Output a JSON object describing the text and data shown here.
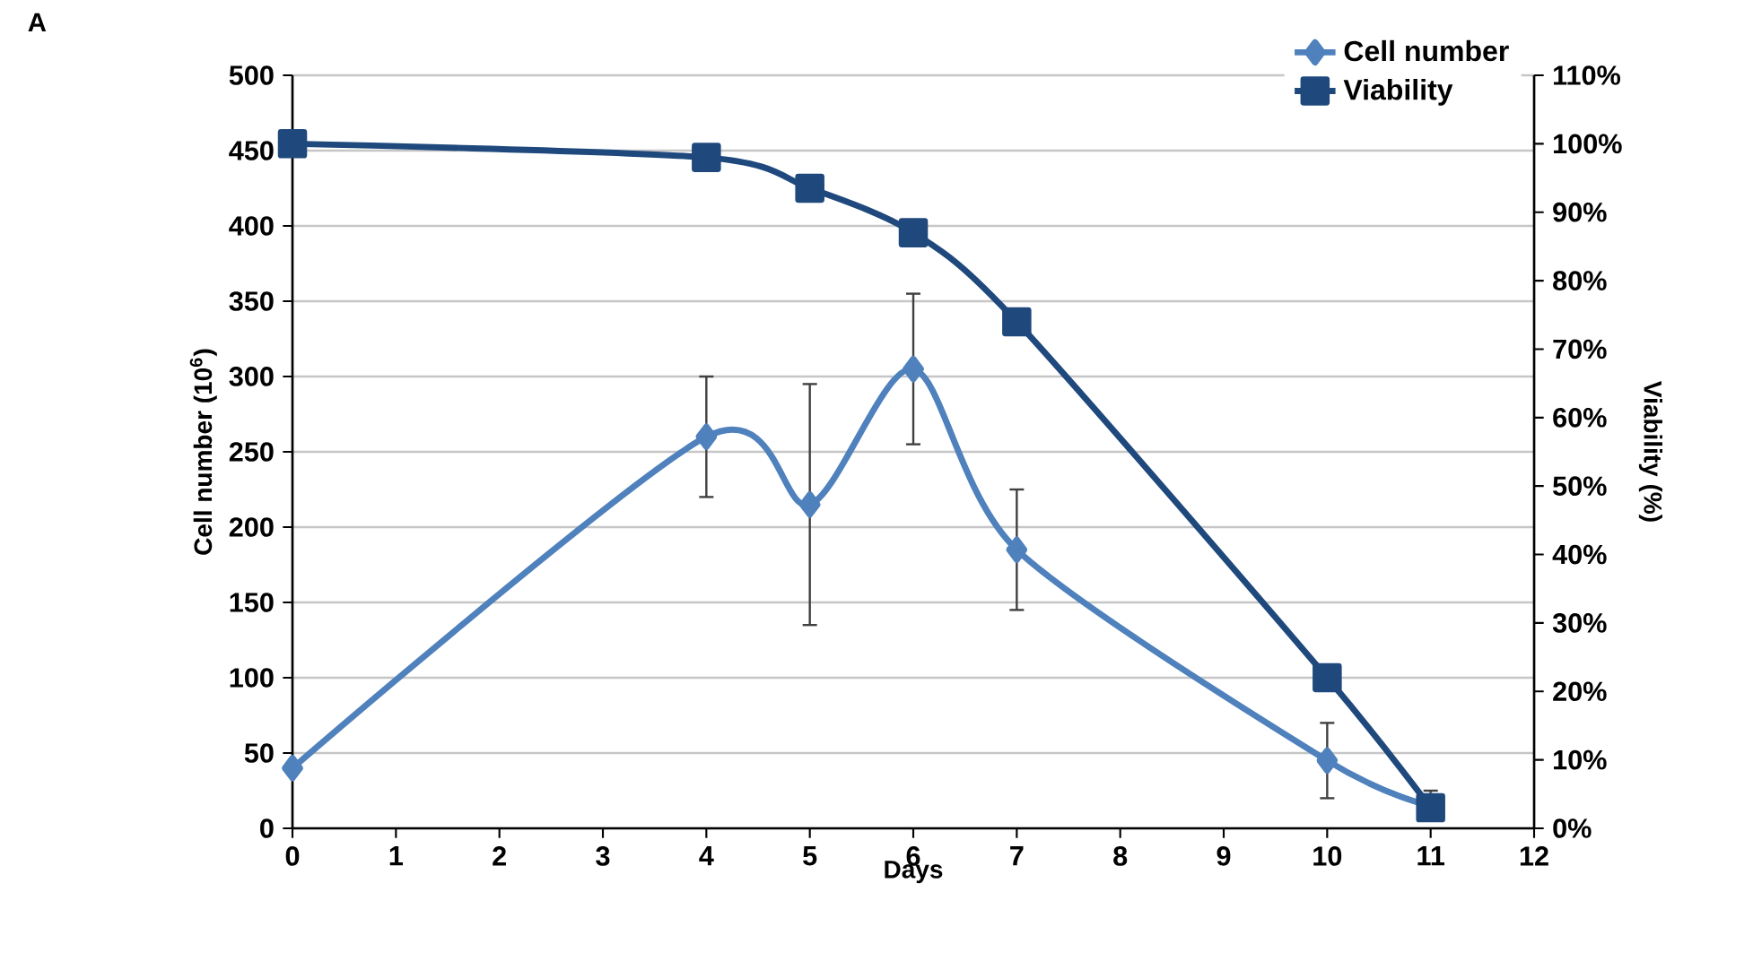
{
  "chart_data": {
    "type": "line",
    "annotations": [
      "A"
    ],
    "xlabel": "Days",
    "ylabel": "Cell number (10$^{6}$)",
    "y2label": "Viability (%)",
    "x": [
      0,
      4,
      5,
      6,
      7,
      10,
      11
    ],
    "series": [
      {
        "name": "Cell number",
        "color": "#4f81bd",
        "marker": "diamond",
        "values": [
          40,
          260,
          215,
          305,
          185,
          45,
          15
        ],
        "errors": [
          null,
          [
            220,
            300
          ],
          [
            135,
            295
          ],
          [
            255,
            355
          ],
          [
            145,
            225
          ],
          [
            20,
            70
          ],
          [
            5,
            25
          ]
        ]
      },
      {
        "name": "Viability",
        "color": "#1f497d",
        "marker": "square",
        "axis": "y2",
        "values": [
          100,
          98,
          93.5,
          87,
          74,
          22,
          3
        ]
      }
    ],
    "xlim": [
      0,
      12
    ],
    "xticks": [
      0,
      1,
      2,
      3,
      4,
      5,
      6,
      7,
      8,
      9,
      10,
      11,
      12
    ],
    "ylim": [
      0,
      500
    ],
    "yticks": [
      0,
      50,
      100,
      150,
      200,
      250,
      300,
      350,
      400,
      450,
      500
    ],
    "y2lim": [
      0,
      110
    ],
    "y2ticks": [
      {
        "value": 0,
        "label": "0%"
      },
      {
        "value": 10,
        "label": "10%"
      },
      {
        "value": 20,
        "label": "20%"
      },
      {
        "value": 30,
        "label": "30%"
      },
      {
        "value": 40,
        "label": "40%"
      },
      {
        "value": 50,
        "label": "50%"
      },
      {
        "value": 60,
        "label": "60%"
      },
      {
        "value": 70,
        "label": "70%"
      },
      {
        "value": 80,
        "label": "80%"
      },
      {
        "value": 90,
        "label": "90%"
      },
      {
        "value": 100,
        "label": "100%"
      },
      {
        "value": 110,
        "label": "110%"
      }
    ],
    "grid": "y",
    "legend": "top right",
    "line_style": "solid"
  }
}
